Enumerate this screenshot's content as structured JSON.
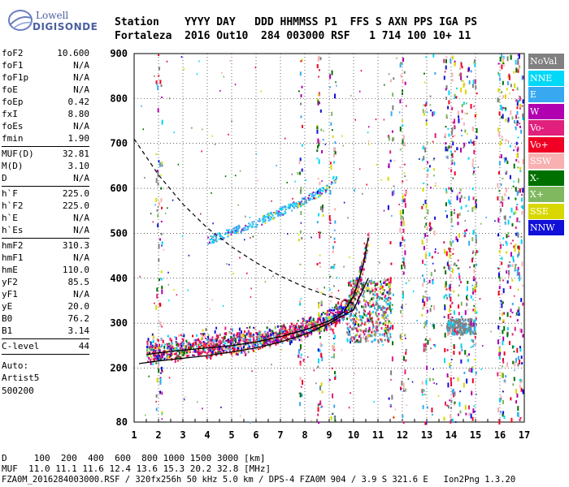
{
  "logo": {
    "line1": "Lowell",
    "line2": "DIGISONDE"
  },
  "header": {
    "line1": "Station    YYYY DAY   DDD HHMMSS P1  FFS S AXN PPS IGA PS",
    "line2": "Fortaleza  2016 Out10  284 003000 RSF   1 714 100 10+ 11"
  },
  "params": [
    {
      "items": [
        [
          "foF2",
          "10.600"
        ],
        [
          "foF1",
          "N/A"
        ],
        [
          "foF1p",
          "N/A"
        ],
        [
          "foE",
          "N/A"
        ],
        [
          "foEp",
          "0.42"
        ],
        [
          "fxI",
          "8.80"
        ],
        [
          "foEs",
          "N/A"
        ],
        [
          "fmin",
          "1.90"
        ]
      ]
    },
    {
      "items": [
        [
          "MUF(D)",
          "32.81"
        ],
        [
          "M(D)",
          "3.10"
        ],
        [
          "D",
          "N/A"
        ]
      ]
    },
    {
      "items": [
        [
          "h`F",
          "225.0"
        ],
        [
          "h`F2",
          "225.0"
        ],
        [
          "h`E",
          "N/A"
        ],
        [
          "h`Es",
          "N/A"
        ]
      ]
    },
    {
      "items": [
        [
          "hmF2",
          "310.3"
        ],
        [
          "hmF1",
          "N/A"
        ],
        [
          "hmE",
          "110.0"
        ],
        [
          "yF2",
          "85.5"
        ],
        [
          "yF1",
          "N/A"
        ],
        [
          "yE",
          "20.0"
        ],
        [
          "B0",
          "76.2"
        ],
        [
          "B1",
          "3.14"
        ]
      ]
    },
    {
      "items": [
        [
          "C-level",
          "44"
        ]
      ]
    }
  ],
  "auto": [
    "Auto:",
    "Artist5",
    "500200"
  ],
  "legend": [
    {
      "label": "NoVal",
      "color": "#808080"
    },
    {
      "label": "NNE",
      "color": "#00d8f8"
    },
    {
      "label": "E",
      "color": "#38a8f0"
    },
    {
      "label": "W",
      "color": "#b000b0"
    },
    {
      "label": "Vo-",
      "color": "#e0207c"
    },
    {
      "label": "Vo+",
      "color": "#f00024"
    },
    {
      "label": "SSW",
      "color": "#f8b0b0"
    },
    {
      "label": "X-",
      "color": "#007000"
    },
    {
      "label": "X+",
      "color": "#80b860"
    },
    {
      "label": "SSE",
      "color": "#d8d800"
    },
    {
      "label": "NNW",
      "color": "#1010d8"
    }
  ],
  "chart_data": {
    "type": "scatter",
    "xlabel": "",
    "ylabel": "",
    "xlim": [
      1,
      17
    ],
    "ylim": [
      80,
      900
    ],
    "x_ticks": [
      "1",
      "2",
      "3",
      "4",
      "5",
      "6",
      "7",
      "8",
      "9",
      "10",
      "11",
      "12",
      "13",
      "14",
      "15",
      "16",
      "17"
    ],
    "y_ticks": [
      "80",
      "200",
      "300",
      "400",
      "500",
      "600",
      "700",
      "800",
      "900"
    ],
    "y_tick_values": [
      80,
      200,
      300,
      400,
      500,
      600,
      700,
      800,
      900
    ],
    "profile": {
      "x": [
        1.2,
        2,
        3,
        4,
        5,
        6,
        7,
        8,
        9,
        10,
        10.6
      ],
      "y": [
        210,
        216,
        222,
        228,
        236,
        245,
        258,
        275,
        300,
        330,
        400
      ]
    },
    "trace_O": {
      "x": [
        1.5,
        2,
        3,
        4,
        5,
        6,
        7,
        8,
        9,
        9.6,
        10,
        10.4,
        10.6
      ],
      "y": [
        230,
        234,
        240,
        245,
        250,
        258,
        270,
        285,
        305,
        325,
        360,
        430,
        490
      ]
    },
    "trace_E_mode": {
      "x": [
        4,
        5,
        6,
        7,
        8,
        9,
        9.3
      ],
      "y": [
        485,
        505,
        525,
        550,
        575,
        605,
        630
      ]
    },
    "muf_curve": {
      "x": [
        1,
        2,
        3,
        4,
        5,
        6,
        7,
        8,
        9,
        10
      ],
      "y": [
        710,
        630,
        565,
        512,
        470,
        435,
        405,
        380,
        360,
        345
      ]
    }
  },
  "footer": {
    "line1": "D     100  200  400  600  800 1000 1500 3000 [km]",
    "line2": "MUF  11.0 11.1 11.6 12.4 13.6 15.3 20.2 32.8 [MHz]",
    "line3": "FZA0M_2016284003000.RSF / 320fx256h 50 kHz 5.0 km / DPS-4 FZA0M 904 / 3.9 S 321.6 E   Ion2Png 1.3.20"
  }
}
